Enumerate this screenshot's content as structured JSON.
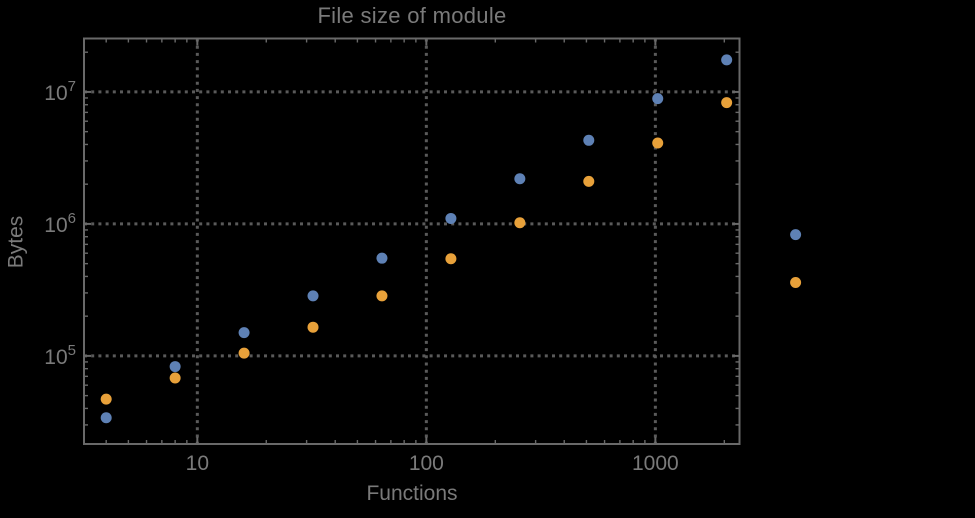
{
  "page": {
    "background": "#000000"
  },
  "chart": {
    "title": "File size of module",
    "xlabel": "Functions",
    "ylabel": "Bytes"
  },
  "style": {
    "frame_color": "#696969",
    "grid_color": "#5a5a5a",
    "text_color": "#7a7a7a",
    "point_radius": 5.5
  },
  "chart_data": {
    "type": "scatter",
    "title": "File size of module",
    "xlabel": "Functions",
    "ylabel": "Bytes",
    "x_scale": "log",
    "y_scale": "log",
    "xlim": [
      3.2,
      2330
    ],
    "ylim": [
      21500,
      25400000
    ],
    "grid": {
      "show": true,
      "style": "dotted"
    },
    "legend": "none",
    "clip_points": false,
    "x_axis": {
      "major_ticks": [
        10,
        100,
        1000
      ],
      "tick_labels": [
        "10",
        "100",
        "1000"
      ]
    },
    "y_axis": {
      "major_ticks": [
        100000,
        1000000,
        10000000
      ],
      "tick_labels": [
        "10^5",
        "10^6",
        "10^7"
      ],
      "tick_base": "10",
      "tick_exponents": [
        5,
        6,
        7
      ]
    },
    "x": [
      4,
      8,
      16,
      32,
      64,
      128,
      256,
      512,
      1024,
      2048,
      4096
    ],
    "series": [
      {
        "name": "blue",
        "color": "#5E81B5",
        "values": [
          34000,
          83000,
          150000,
          285000,
          550000,
          1100000,
          2200000,
          4300000,
          8900000,
          17500000,
          830000
        ]
      },
      {
        "name": "orange",
        "color": "#E8A13A",
        "values": [
          47000,
          68000,
          105000,
          165000,
          285000,
          545000,
          1020000,
          2100000,
          4100000,
          8300000,
          360000
        ]
      }
    ]
  }
}
